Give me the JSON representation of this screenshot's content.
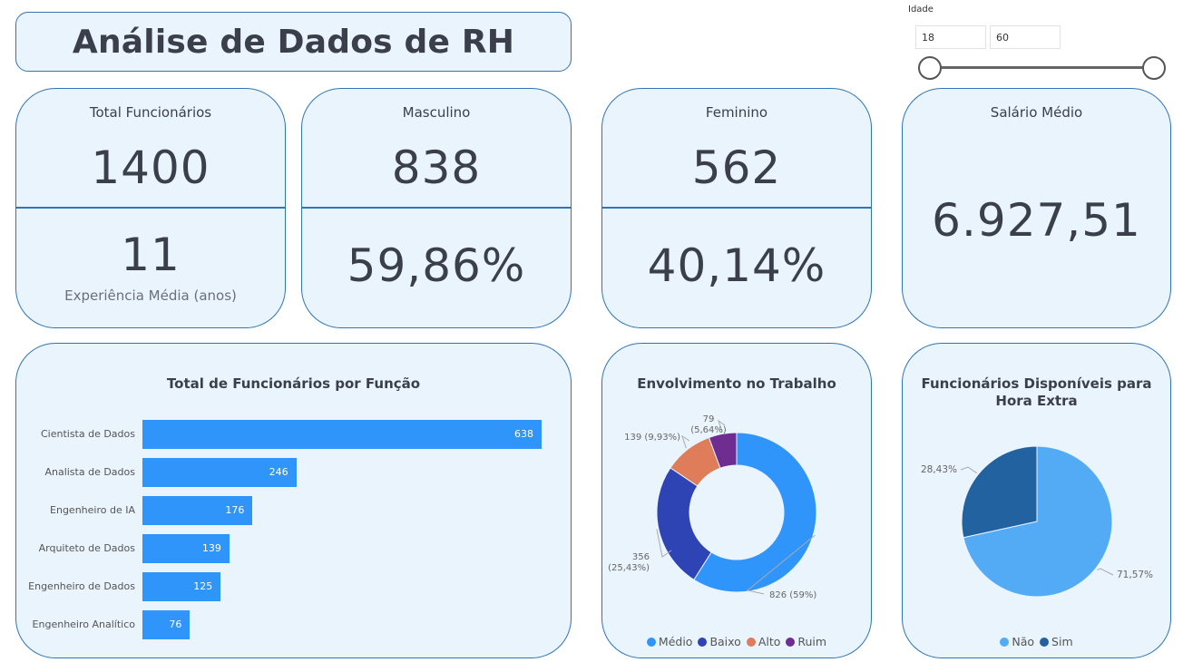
{
  "title": "Análise de Dados de RH",
  "slicer": {
    "label": "Idade",
    "min": "18",
    "max": "60"
  },
  "kpis": {
    "total": {
      "title": "Total Funcionários",
      "value": "1400",
      "sub_value": "11",
      "sub_label": "Experiência Média (anos)"
    },
    "male": {
      "title": "Masculino",
      "value": "838",
      "percent": "59,86%"
    },
    "female": {
      "title": "Feminino",
      "value": "562",
      "percent": "40,14%"
    },
    "salary": {
      "title": "Salário Médio",
      "value": "6.927,51"
    }
  },
  "colors": {
    "accent": "#2e75b6",
    "bar": "#2f95fb",
    "card": "#eaf4fd"
  },
  "chart_data": [
    {
      "type": "bar",
      "orientation": "horizontal",
      "title": "Total de Funcionários por Função",
      "categories": [
        "Cientista de Dados",
        "Analista de Dados",
        "Engenheiro de IA",
        "Arquiteto de Dados",
        "Engenheiro de Dados",
        "Engenheiro Analítico"
      ],
      "values": [
        638,
        246,
        176,
        139,
        125,
        76
      ],
      "value_labels": [
        "638",
        "246",
        "176",
        "139",
        "125",
        "76"
      ],
      "xlim": [
        0,
        638
      ]
    },
    {
      "type": "pie",
      "variant": "donut",
      "title": "Envolvimento no Trabalho",
      "categories": [
        "Médio",
        "Baixo",
        "Alto",
        "Ruim"
      ],
      "values": [
        826,
        356,
        139,
        79
      ],
      "labels": [
        "826 (59%)",
        "356 (25,43%)",
        "139 (9,93%)",
        "79 (5,64%)"
      ],
      "colors": [
        "#2f95fb",
        "#2e44b4",
        "#df7c5a",
        "#6f2c91"
      ],
      "legend": "bottom"
    },
    {
      "type": "pie",
      "title": "Funcionários Disponíveis para Hora Extra",
      "categories": [
        "Não",
        "Sim"
      ],
      "values": [
        71.57,
        28.43
      ],
      "labels": [
        "71,57%",
        "28,43%"
      ],
      "colors": [
        "#53abf6",
        "#2362a0"
      ],
      "legend": "bottom"
    }
  ]
}
